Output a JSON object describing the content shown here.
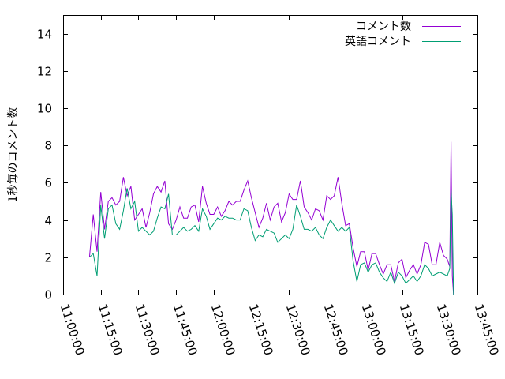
{
  "chart_data": {
    "type": "line",
    "title": "",
    "xlabel": "",
    "ylabel": "1秒毎のコメント数",
    "xlim": [
      "11:00:00",
      "13:45:00"
    ],
    "ylim": [
      0,
      15
    ],
    "x_ticks": [
      "11:00:00",
      "11:15:00",
      "11:30:00",
      "11:45:00",
      "12:00:00",
      "12:15:00",
      "12:30:00",
      "12:45:00",
      "13:00:00",
      "13:15:00",
      "13:30:00",
      "13:45:00"
    ],
    "y_ticks": [
      0,
      2,
      4,
      6,
      8,
      10,
      12,
      14
    ],
    "grid": false,
    "legend_position": "top-right",
    "x": [
      "11:10:30",
      "11:12:00",
      "11:13:30",
      "11:15:00",
      "11:16:30",
      "11:18:00",
      "11:19:30",
      "11:21:00",
      "11:22:30",
      "11:24:00",
      "11:25:30",
      "11:27:00",
      "11:28:30",
      "11:30:00",
      "11:31:30",
      "11:33:00",
      "11:34:30",
      "11:36:00",
      "11:37:30",
      "11:39:00",
      "11:40:30",
      "11:42:00",
      "11:43:30",
      "11:45:00",
      "11:46:30",
      "11:48:00",
      "11:49:30",
      "11:51:00",
      "11:52:30",
      "11:54:00",
      "11:55:30",
      "11:57:00",
      "11:58:30",
      "12:00:00",
      "12:01:30",
      "12:03:00",
      "12:04:30",
      "12:06:00",
      "12:07:30",
      "12:09:00",
      "12:10:30",
      "12:12:00",
      "12:13:30",
      "12:15:00",
      "12:16:30",
      "12:18:00",
      "12:19:30",
      "12:21:00",
      "12:22:30",
      "12:24:00",
      "12:25:30",
      "12:27:00",
      "12:28:30",
      "12:30:00",
      "12:31:30",
      "12:33:00",
      "12:34:30",
      "12:36:00",
      "12:37:30",
      "12:39:00",
      "12:40:30",
      "12:42:00",
      "12:43:30",
      "12:45:00",
      "12:46:30",
      "12:48:00",
      "12:49:30",
      "12:51:00",
      "12:52:30",
      "12:54:00",
      "12:55:30",
      "12:57:00",
      "12:58:30",
      "13:00:00",
      "13:01:30",
      "13:03:00",
      "13:04:30",
      "13:06:00",
      "13:07:30",
      "13:09:00",
      "13:10:30",
      "13:12:00",
      "13:13:30",
      "13:15:00",
      "13:16:30",
      "13:18:00",
      "13:19:30",
      "13:21:00",
      "13:22:30",
      "13:24:00",
      "13:25:30",
      "13:27:00",
      "13:28:30",
      "13:30:00",
      "13:31:30",
      "13:33:00",
      "13:34:00",
      "13:34:30",
      "13:35:00",
      "13:35:30"
    ],
    "series": [
      {
        "name": "コメント数",
        "color": "#9400d3",
        "values": [
          2.0,
          4.3,
          2.3,
          5.5,
          3.5,
          5.0,
          5.2,
          4.8,
          5.0,
          6.3,
          5.3,
          5.8,
          4.0,
          4.3,
          4.6,
          3.6,
          4.4,
          5.4,
          5.8,
          5.5,
          6.1,
          3.8,
          3.5,
          4.0,
          4.7,
          4.1,
          4.1,
          4.7,
          4.8,
          3.9,
          5.8,
          4.9,
          4.3,
          4.3,
          4.7,
          4.2,
          4.5,
          5.0,
          4.8,
          5.0,
          5.0,
          5.6,
          6.1,
          5.2,
          4.4,
          3.6,
          4.1,
          4.9,
          4.0,
          4.7,
          4.9,
          3.9,
          4.4,
          5.4,
          5.1,
          5.1,
          6.1,
          4.7,
          4.4,
          4.0,
          4.6,
          4.5,
          4.0,
          5.3,
          5.1,
          5.3,
          6.3,
          4.9,
          3.7,
          3.8,
          2.5,
          1.5,
          2.3,
          2.3,
          1.3,
          2.2,
          2.2,
          1.6,
          1.1,
          1.6,
          1.6,
          0.7,
          1.7,
          1.9,
          0.9,
          1.3,
          1.6,
          1.1,
          1.6,
          2.8,
          2.7,
          1.6,
          1.6,
          2.8,
          2.1,
          1.9,
          1.5,
          8.2,
          1.0,
          0.0
        ]
      },
      {
        "name": "英語コメント",
        "color": "#009e73",
        "values": [
          2.0,
          2.2,
          1.0,
          4.8,
          3.0,
          4.6,
          4.8,
          3.8,
          3.5,
          4.5,
          5.7,
          4.6,
          5.0,
          3.4,
          3.6,
          3.4,
          3.2,
          3.4,
          4.1,
          4.7,
          4.6,
          5.4,
          3.2,
          3.2,
          3.4,
          3.6,
          3.4,
          3.5,
          3.7,
          3.4,
          4.6,
          4.2,
          3.5,
          3.8,
          4.1,
          4.0,
          4.2,
          4.1,
          4.1,
          4.0,
          4.0,
          4.6,
          4.5,
          3.6,
          2.9,
          3.2,
          3.1,
          3.5,
          3.4,
          3.3,
          2.8,
          3.0,
          3.2,
          3.0,
          3.5,
          4.8,
          4.2,
          3.5,
          3.5,
          3.4,
          3.6,
          3.2,
          3.0,
          3.6,
          4.0,
          3.7,
          3.4,
          3.6,
          3.4,
          3.6,
          1.8,
          0.7,
          1.6,
          1.7,
          1.2,
          1.6,
          1.7,
          1.2,
          0.9,
          0.7,
          1.2,
          0.6,
          1.2,
          1.0,
          0.6,
          0.8,
          1.0,
          0.7,
          1.0,
          1.6,
          1.4,
          1.0,
          1.1,
          1.2,
          1.1,
          1.0,
          1.4,
          5.6,
          4.3,
          0.0
        ]
      }
    ]
  }
}
